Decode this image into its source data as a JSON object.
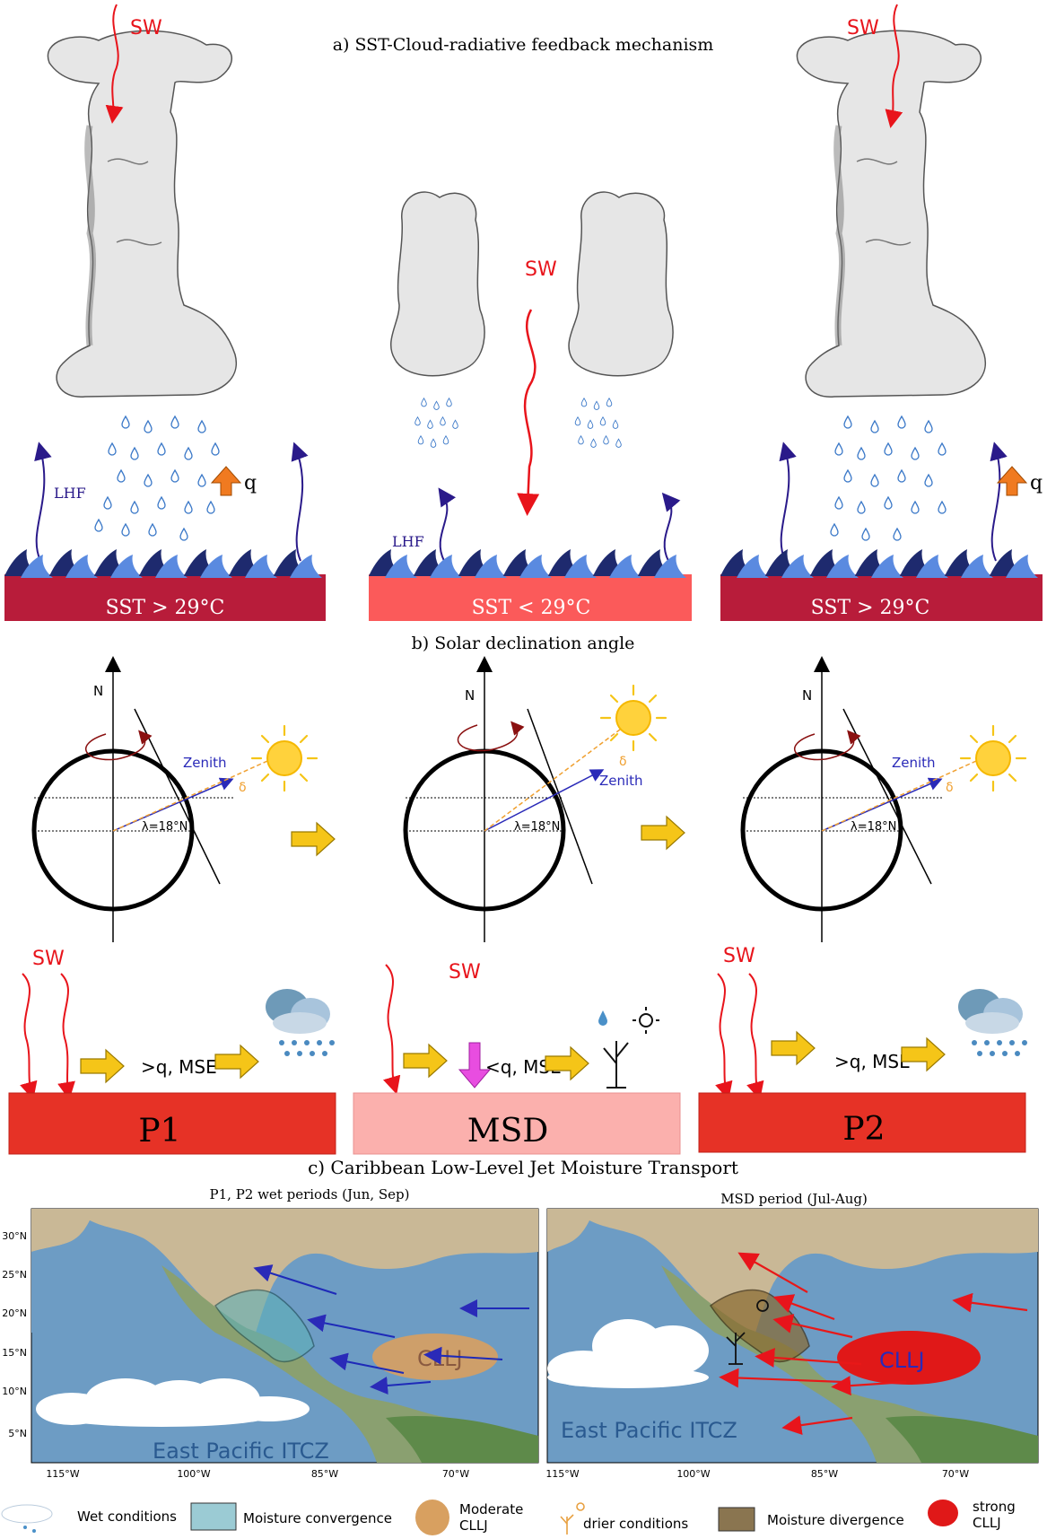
{
  "panel_a": {
    "title": "a) SST-Cloud-radiative feedback mechanism",
    "sw": "SW",
    "lhf": "LHF",
    "q": "q",
    "sst_warm": "SST > 29°C",
    "sst_cool": "SST < 29°C"
  },
  "panel_b": {
    "title": "b) Solar declination angle",
    "north": "N",
    "zenith": "Zenith",
    "delta": "δ",
    "latitude": "λ=18°N"
  },
  "panel_phase": {
    "sw": "SW",
    "more_q": ">q, MSE",
    "less_q": "<q, MSE",
    "p1": "P1",
    "msd": "MSD",
    "p2": "P2"
  },
  "panel_c": {
    "title": "c) Caribbean Low-Level Jet Moisture Transport",
    "left_title": "P1, P2 wet periods (Jun, Sep)",
    "right_title": "MSD period (Jul-Aug)",
    "cllj": "CLLJ",
    "itcz": "East Pacific ITCZ",
    "lat_ticks": [
      "30°N",
      "25°N",
      "20°N",
      "15°N",
      "10°N",
      "5°N"
    ],
    "lon_ticks": [
      "115°W",
      "100°W",
      "85°W",
      "70°W"
    ]
  },
  "legend": {
    "wet": "Wet conditions",
    "convergence": "Moisture convergence",
    "moderate": "Moderate CLLJ",
    "drier": "drier conditions",
    "divergence": "Moisture divergence",
    "strong": "strong CLLJ"
  },
  "colors": {
    "sw_red": "#e8141b",
    "lhf_purple": "#3a1a7a",
    "sst_warm": "#b81c3a",
    "sst_cool": "#fb5a5a",
    "p_red": "#e63226",
    "msd_pink": "#fbb0ad",
    "cllj_moderate": "#d8a060",
    "cllj_strong": "#e01818",
    "ocean": "#6d9cc4"
  }
}
